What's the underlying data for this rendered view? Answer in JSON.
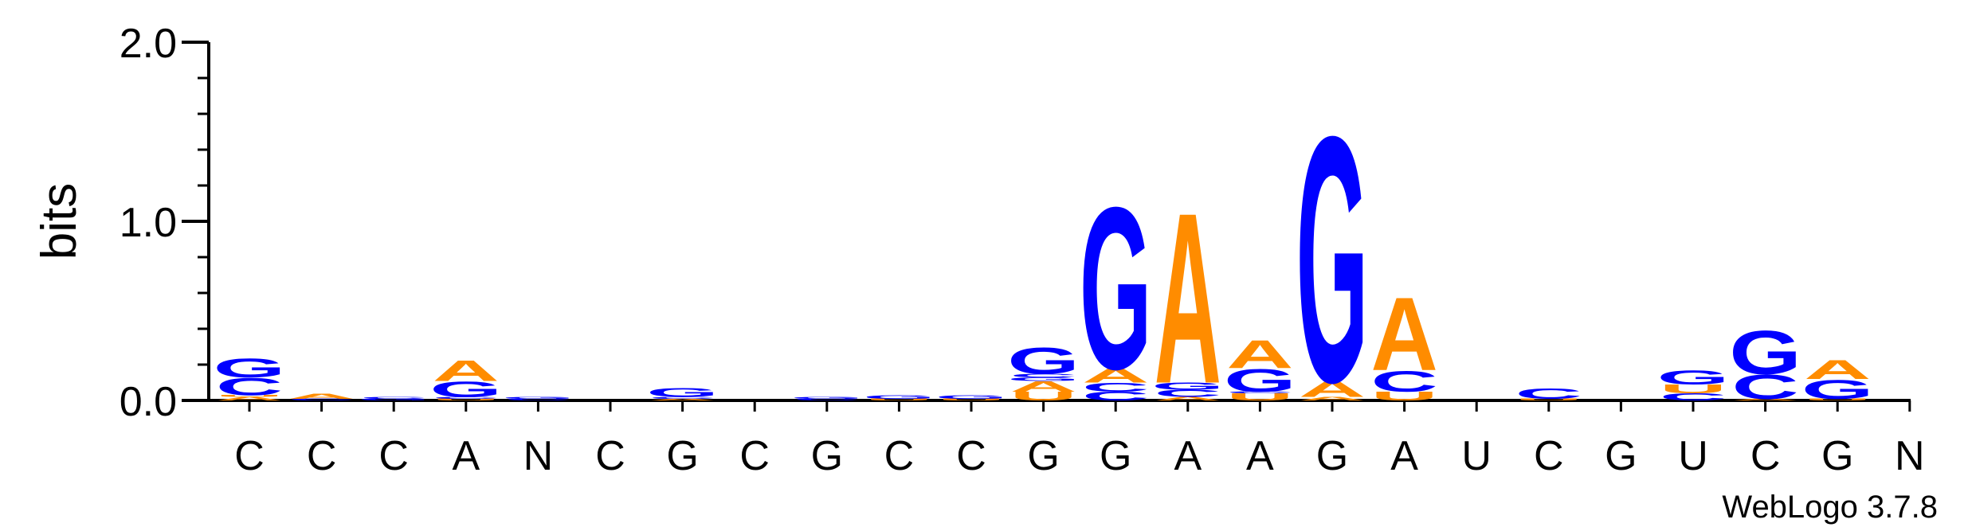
{
  "chart_data": {
    "type": "sequence-logo",
    "ylabel": "bits",
    "ylim": [
      0,
      2.0
    ],
    "yticks": [
      "0.0",
      "1.0",
      "2.0"
    ],
    "ytick_values": [
      0,
      1,
      2
    ],
    "positions": [
      "C",
      "C",
      "C",
      "A",
      "N",
      "C",
      "G",
      "C",
      "G",
      "C",
      "C",
      "G",
      "G",
      "A",
      "A",
      "G",
      "A",
      "U",
      "C",
      "G",
      "U",
      "C",
      "G",
      "N"
    ],
    "colors": {
      "A": "#ff8c00",
      "U": "#ff8c00",
      "G": "#0000ff",
      "C": "#0000ff",
      "N": "#0000ff"
    },
    "stacks": [
      [
        [
          "A",
          0.02
        ],
        [
          "U",
          0.01
        ],
        [
          "C",
          0.1
        ],
        [
          "G",
          0.11
        ]
      ],
      [
        [
          "C",
          0.01
        ],
        [
          "A",
          0.03
        ]
      ],
      [
        [
          "G",
          0.01
        ],
        [
          "C",
          0.01
        ]
      ],
      [
        [
          "U",
          0.01
        ],
        [
          "C",
          0.01
        ],
        [
          "G",
          0.09
        ],
        [
          "A",
          0.12
        ]
      ],
      [
        [
          "C",
          0.01
        ],
        [
          "G",
          0.01
        ]
      ],
      [],
      [
        [
          "A",
          0.01
        ],
        [
          "C",
          0.01
        ],
        [
          "G",
          0.05
        ]
      ],
      [],
      [
        [
          "C",
          0.01
        ],
        [
          "G",
          0.01
        ]
      ],
      [
        [
          "U",
          0.01
        ],
        [
          "G",
          0.02
        ]
      ],
      [
        [
          "U",
          0.01
        ],
        [
          "G",
          0.02
        ]
      ],
      [
        [
          "U",
          0.05
        ],
        [
          "A",
          0.06
        ],
        [
          "G",
          0.02
        ],
        [
          "C",
          0.02
        ],
        [
          "G",
          0.15
        ]
      ],
      [
        [
          "C",
          0.05
        ],
        [
          "C",
          0.05
        ],
        [
          "A",
          0.08
        ],
        [
          "G",
          0.93
        ]
      ],
      [
        [
          "A",
          0.02
        ],
        [
          "C",
          0.04
        ],
        [
          "G",
          0.04
        ],
        [
          "A",
          0.98
        ]
      ],
      [
        [
          "U",
          0.04
        ],
        [
          "C",
          0.01
        ],
        [
          "G",
          0.13
        ],
        [
          "A",
          0.16
        ]
      ],
      [
        [
          "A",
          0.02
        ],
        [
          "A",
          0.09
        ],
        [
          "G",
          1.41
        ]
      ],
      [
        [
          "U",
          0.05
        ],
        [
          "C",
          0.12
        ],
        [
          "A",
          0.42
        ]
      ],
      [],
      [
        [
          "U",
          0.01
        ],
        [
          "C",
          0.06
        ]
      ],
      [],
      [
        [
          "C",
          0.04
        ],
        [
          "U",
          0.05
        ],
        [
          "G",
          0.08
        ]
      ],
      [
        [
          "A",
          0.01
        ],
        [
          "C",
          0.14
        ],
        [
          "G",
          0.25
        ]
      ],
      [
        [
          "U",
          0.01
        ],
        [
          "G",
          0.11
        ],
        [
          "A",
          0.11
        ]
      ],
      []
    ]
  },
  "credit": "WebLogo 3.7.8"
}
